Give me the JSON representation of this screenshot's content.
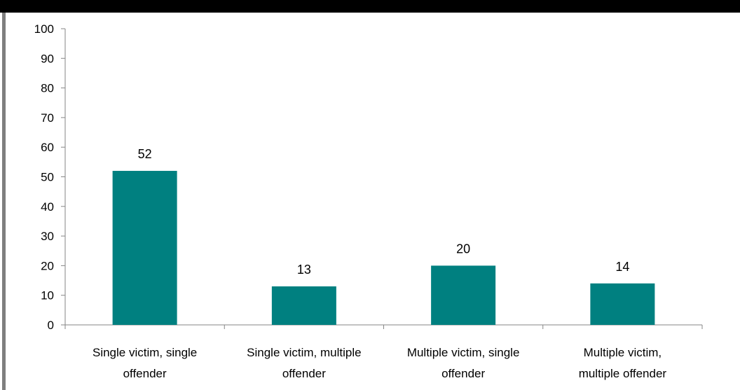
{
  "chart_data": {
    "type": "bar",
    "categories": [
      [
        "Single victim, single",
        "offender"
      ],
      [
        "Single victim, multiple",
        "offender"
      ],
      [
        "Multiple victim, single",
        "offender"
      ],
      [
        "Multiple victim,",
        "multiple offender"
      ]
    ],
    "values": [
      52,
      13,
      20,
      14
    ],
    "data_labels": [
      "52",
      "13",
      "20",
      "14"
    ],
    "yticks": [
      0,
      10,
      20,
      30,
      40,
      50,
      60,
      70,
      80,
      90,
      100
    ],
    "ylim": [
      0,
      100
    ],
    "grid": false,
    "legend": "none",
    "bar_color": "#008080",
    "axis_color": "#868686"
  }
}
